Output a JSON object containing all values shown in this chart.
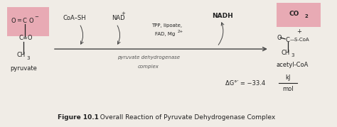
{
  "background_color": "#e8e4de",
  "fig_width": 4.74,
  "fig_height": 1.79,
  "title_text": "  Overall Reaction of Pyruvate Dehydrogenase Complex",
  "title_bold": "Figure 10.1",
  "title_fontsize": 6.5,
  "arrow_color": "#444444",
  "pink_box_color": "#e8aab4",
  "pink_box2_color": "#e8aab4",
  "text_color": "#222222",
  "italic_color": "#555555",
  "coa_label": "CoA–SH",
  "nad_label": "NAD",
  "nad_super": "+",
  "nadh_label": "NADH",
  "co2_line1": "CO",
  "co2_sub": "2",
  "cofactors_line1": "TPP, lipoate,",
  "cofactors_line2": "FAD, Mg",
  "cofactors_super": "2+",
  "complex_line1": "pyruvate dehydrogenase",
  "complex_line2": "complex",
  "delta_g": "ΔG°′ = −33.4",
  "kj": "kJ",
  "mol": "mol",
  "pyruvate_label": "pyruvate",
  "acetyl_coa_label": "acetyl-CoA",
  "font_size_main": 6.0,
  "font_size_small": 5.0,
  "font_size_tiny": 4.0
}
